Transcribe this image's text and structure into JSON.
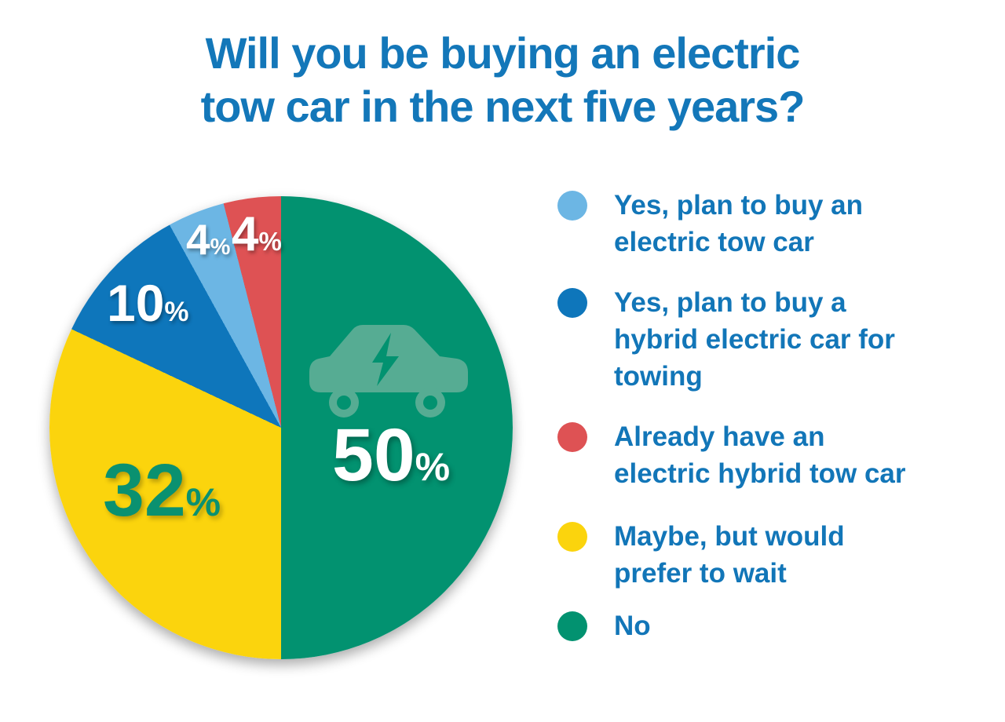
{
  "title": "Will you be buying an electric\ntow car in the next five years?",
  "colors": {
    "title_text": "#1377B9",
    "legend_text": "#1276B8",
    "car_icon_body": "#56AC93",
    "background": "#FFFFFF"
  },
  "chart_data": {
    "type": "pie",
    "title": "Will you be buying an electric tow car in the next five years?",
    "direction": "clockwise",
    "start_angle_deg": 0,
    "legend_position": "right",
    "grid": false,
    "percent_sign": "%",
    "slices": [
      {
        "id": "no",
        "label": "No",
        "value": 50,
        "color": "#029270",
        "label_color": "#FFFFFF"
      },
      {
        "id": "maybe-wait",
        "label": "Maybe, but would prefer to wait",
        "value": 32,
        "color": "#FBD40D",
        "label_color": "#0A9170"
      },
      {
        "id": "hybrid-electric",
        "label": "Yes, plan to buy a hybrid electric car for towing",
        "value": 10,
        "color": "#0E76BB",
        "label_color": "#FFFFFF"
      },
      {
        "id": "electric-tow-car",
        "label": "Yes, plan to buy an electric tow car",
        "value": 4,
        "color": "#6CB6E4",
        "label_color": "#FFFFFF"
      },
      {
        "id": "already-have",
        "label": "Already have an electric hybrid tow car",
        "value": 4,
        "color": "#DE5254",
        "label_color": "#FFFFFF"
      }
    ]
  },
  "legend": {
    "items": [
      {
        "slice_id": "electric-tow-car",
        "color": "#6CB6E4",
        "label": "Yes, plan to buy an\nelectric tow car"
      },
      {
        "slice_id": "hybrid-electric",
        "color": "#0E76BB",
        "label": "Yes, plan to buy a\nhybrid electric car for\ntowing"
      },
      {
        "slice_id": "already-have",
        "color": "#DE5254",
        "label": "Already have an\nelectric hybrid tow car"
      },
      {
        "slice_id": "maybe-wait",
        "color": "#FBD40D",
        "label": "Maybe, but would\nprefer to wait"
      },
      {
        "slice_id": "no",
        "color": "#029270",
        "label": "No"
      }
    ]
  }
}
